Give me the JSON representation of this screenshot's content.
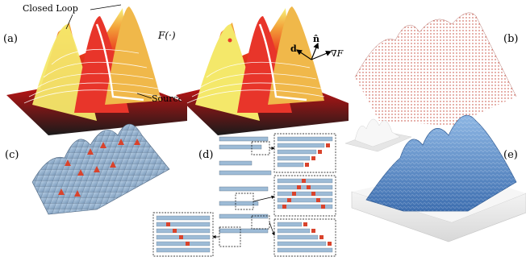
{
  "panels": {
    "a": {
      "label": "(a)",
      "closed_loop": "Closed Loop",
      "func": "F(·)",
      "source": "Source",
      "vec_d": "d",
      "vec_n": "n̂",
      "grad_f": "∇F"
    },
    "b": {
      "label": "(b)"
    },
    "c": {
      "label": "(c)"
    },
    "d": {
      "label": "(d)"
    },
    "e": {
      "label": "(e)"
    }
  },
  "colors": {
    "heat_low": "#1a1a1a",
    "heat_mid": "#e02020",
    "heat_high": "#f6f07a",
    "isoline": "#ffffff",
    "point_cloud": "#c0392b",
    "mesh_blue": "#9dbbd6",
    "mesh_edge": "#5a6f86",
    "stitch_red": "#d9432c",
    "knit_blue": "#4f86c6",
    "base_white": "#efefef"
  }
}
